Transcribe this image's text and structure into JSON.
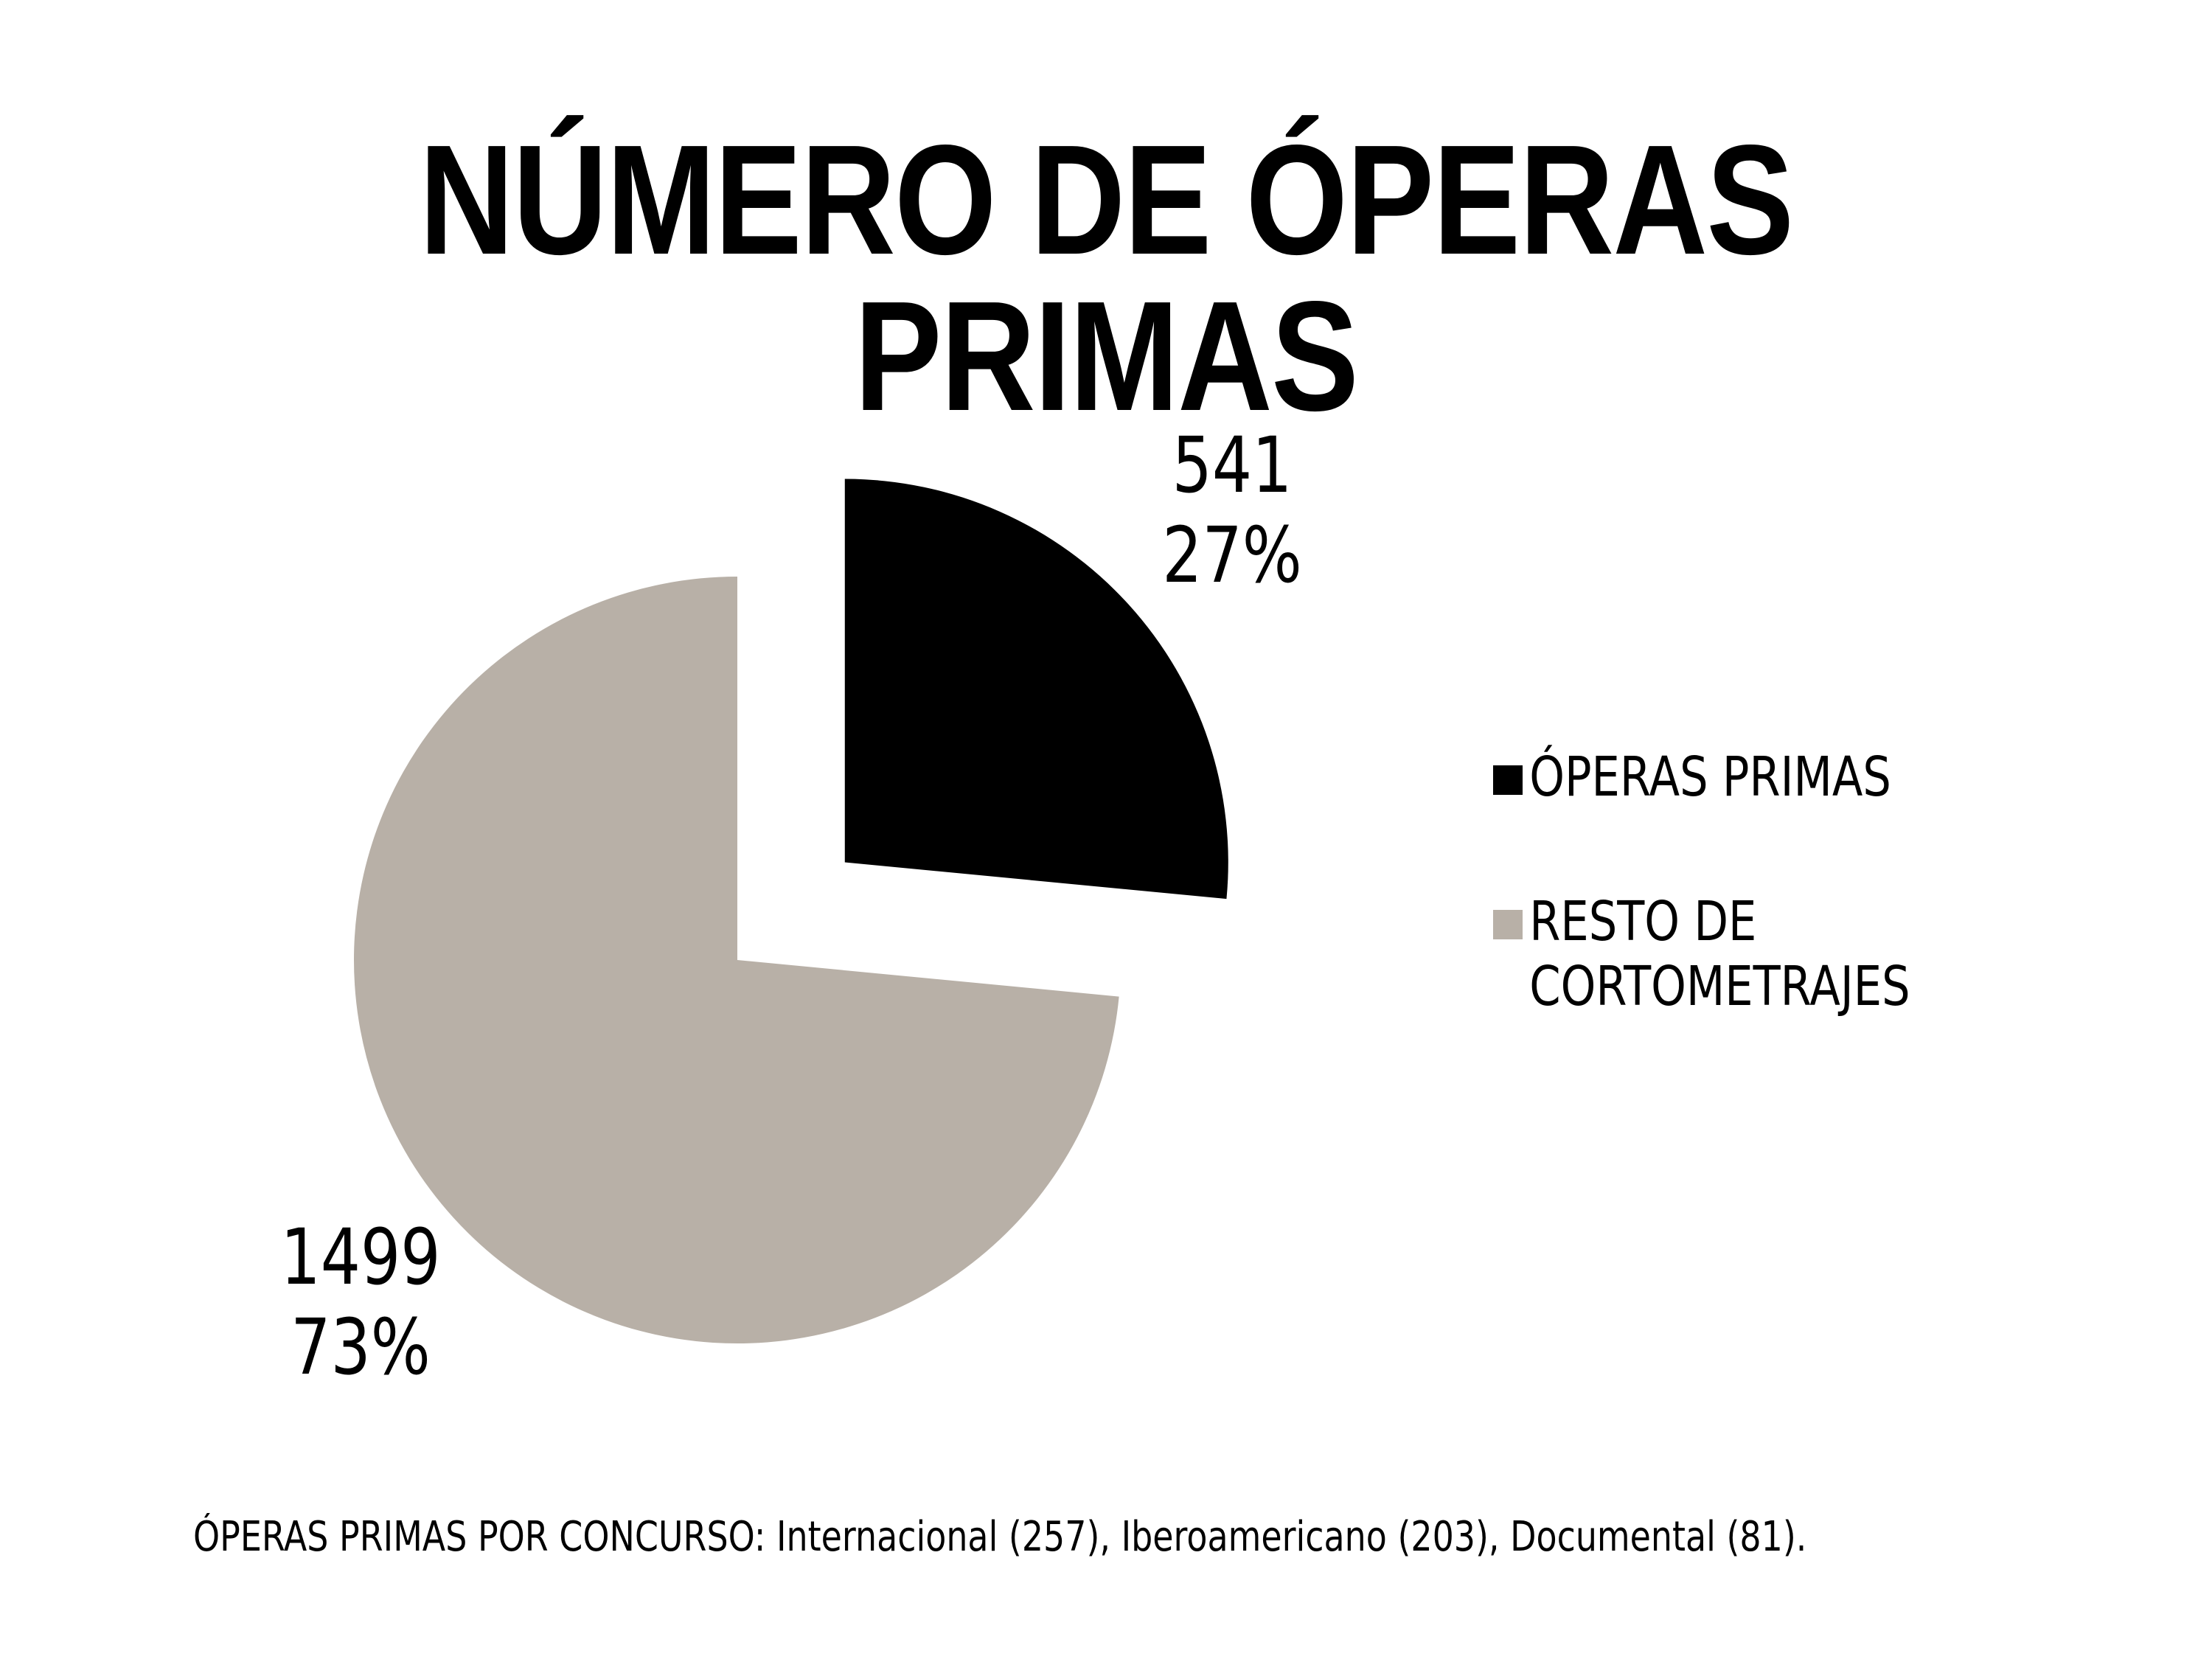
{
  "chart_data": {
    "type": "pie",
    "title": "NÚMERO DE ÓPERAS PRIMAS",
    "slices": [
      {
        "name": "ÓPERAS PRIMAS",
        "value": 541,
        "percent_label": "27%",
        "value_label": "541",
        "color": "#000000",
        "exploded": true
      },
      {
        "name": "RESTO DE CORTOMETRAJES",
        "value": 1499,
        "percent_label": "73%",
        "value_label": "1499",
        "color": "#b8b0a7",
        "exploded": false
      }
    ],
    "legend": {
      "placement": "right",
      "items": [
        {
          "label": "ÓPERAS PRIMAS",
          "color": "#000000"
        },
        {
          "label": "RESTO DE CORTOMETRAJES",
          "color": "#b8b0a7"
        }
      ]
    },
    "footnote": {
      "lead": "ÓPERAS PRIMAS POR CONCURSO:",
      "text": " Internacional (257), Iberoamericano (203), Documental (81)."
    }
  }
}
